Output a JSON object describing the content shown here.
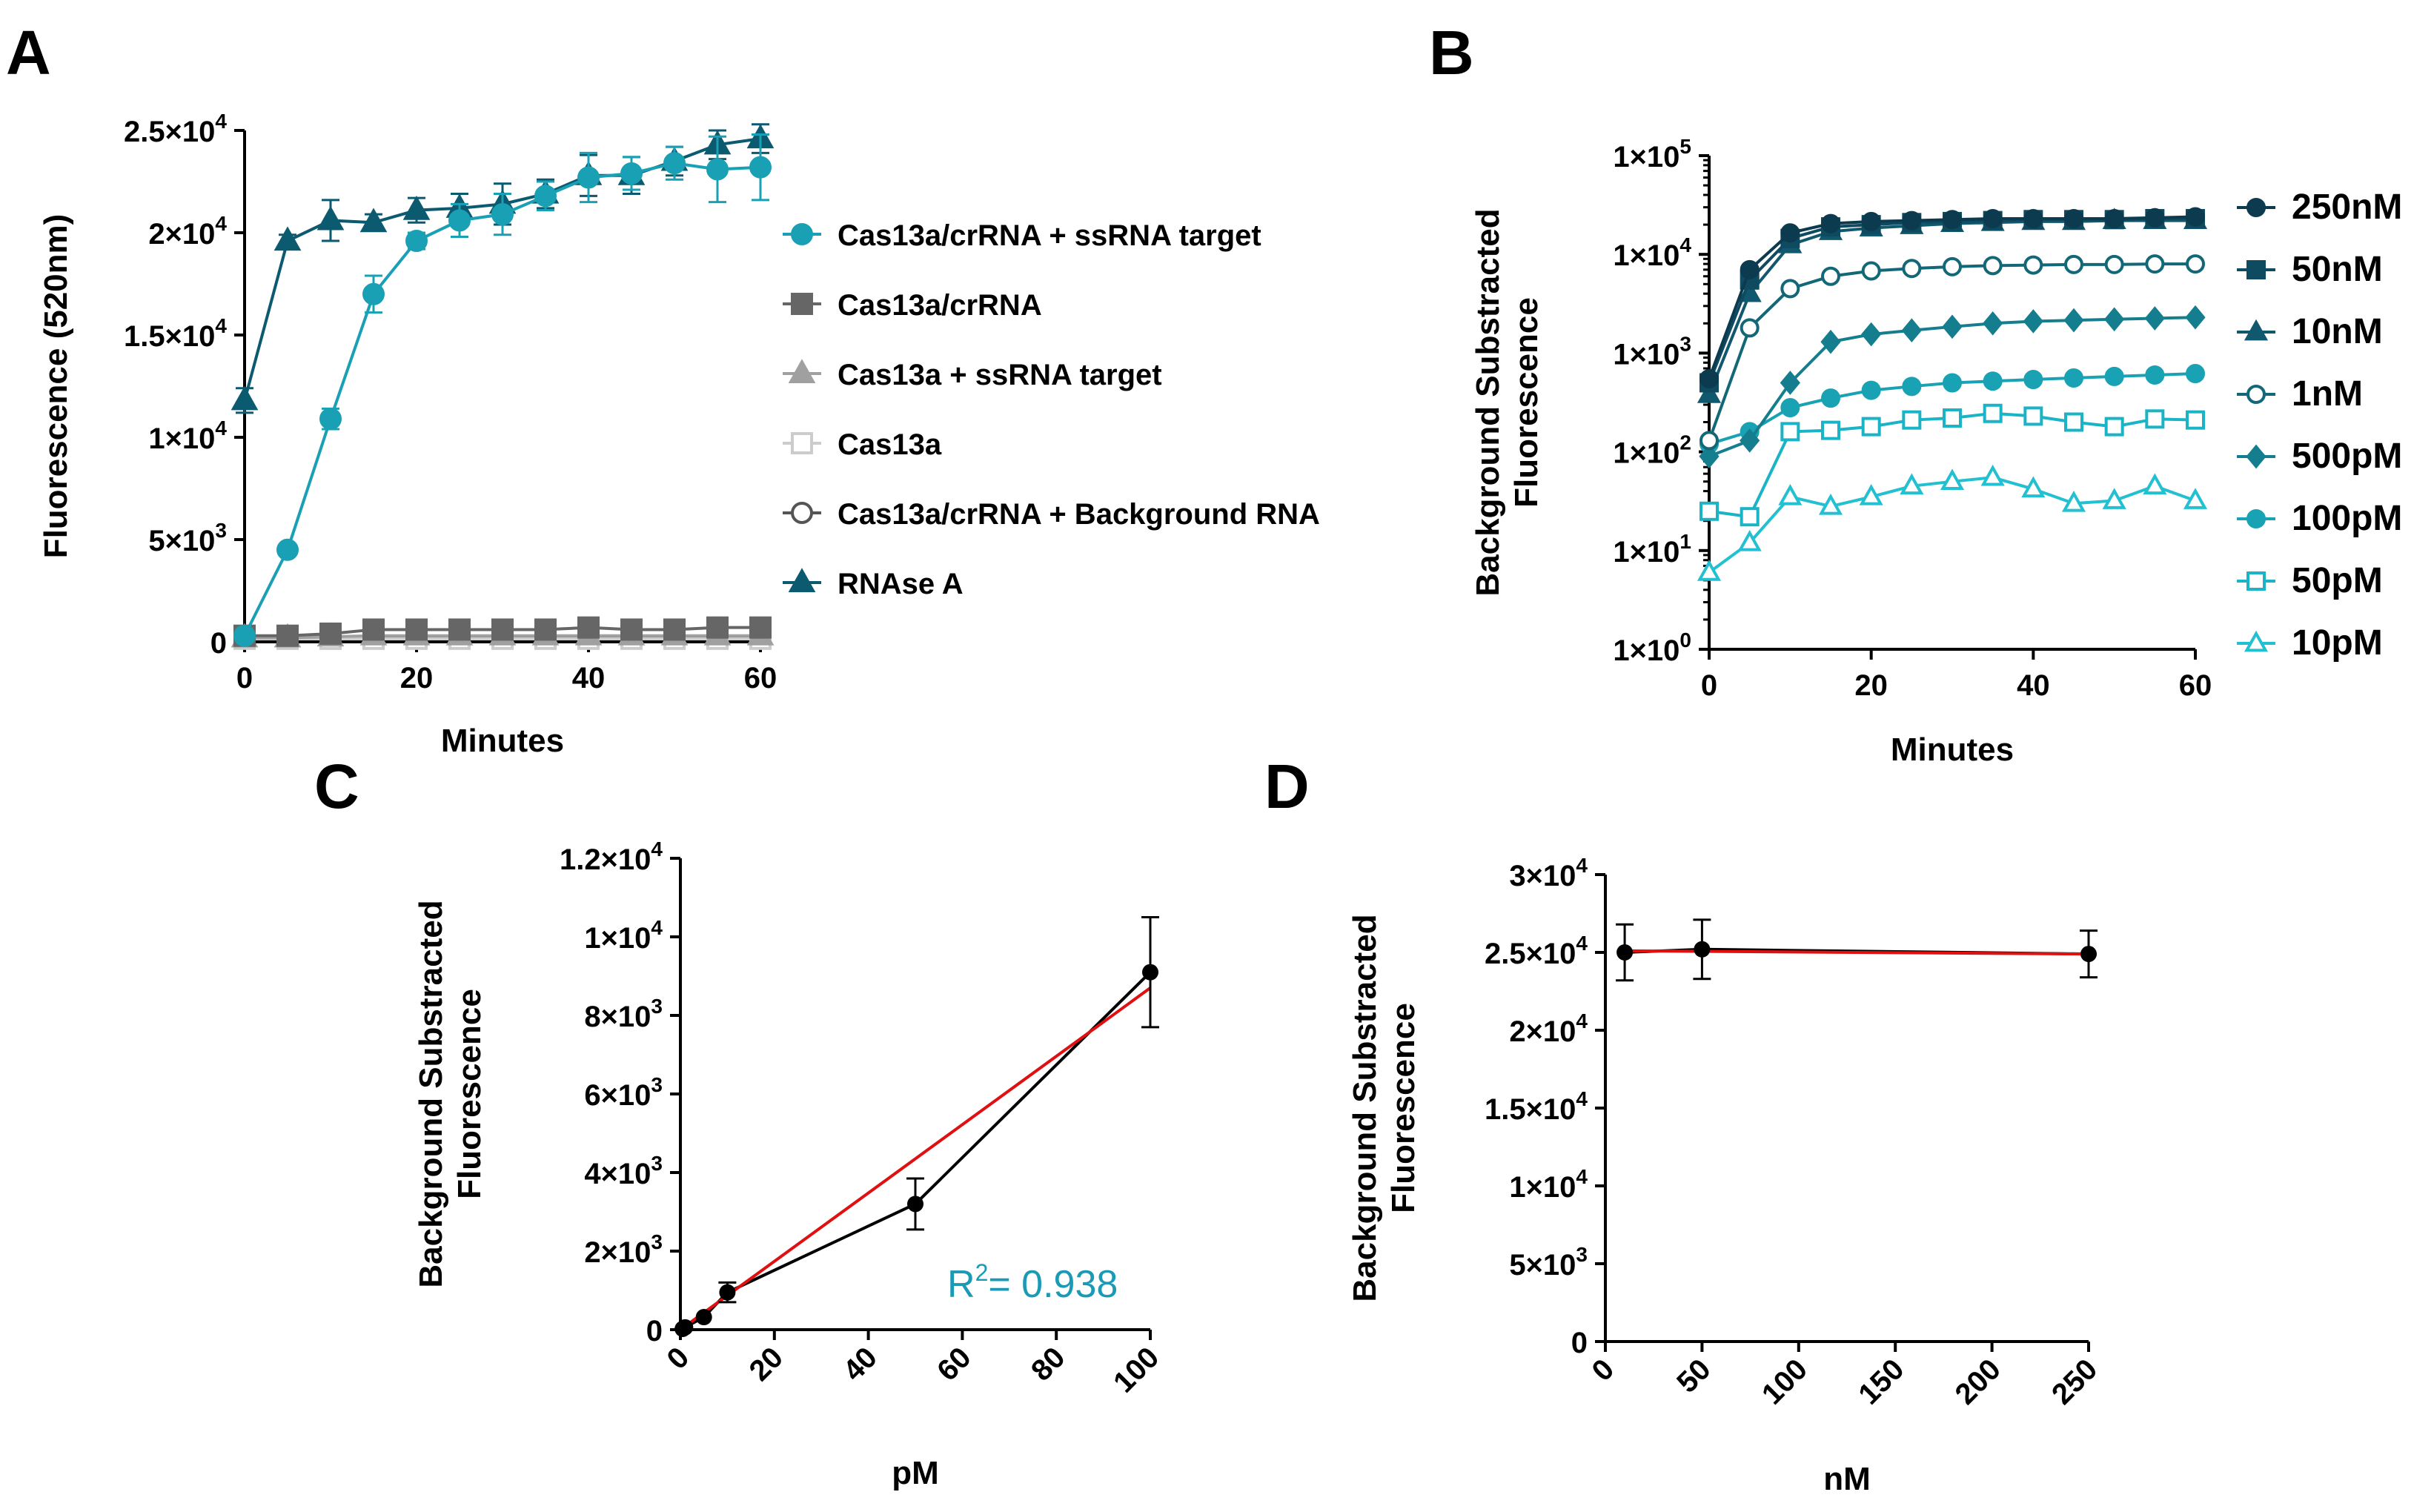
{
  "panels": {
    "A": "A",
    "B": "B",
    "C": "C",
    "D": "D"
  },
  "chart_data": [
    {
      "id": "A",
      "type": "line",
      "title": "",
      "xlabel": "Minutes",
      "ylabel": "Fluorescence (520nm)",
      "xlim": [
        0,
        60
      ],
      "ylim": [
        0,
        25000
      ],
      "xticks": [
        0,
        20,
        40,
        60
      ],
      "yticks": [
        {
          "value": 0,
          "mant": "0",
          "exp": ""
        },
        {
          "value": 5000,
          "mant": "5×10",
          "exp": "3"
        },
        {
          "value": 10000,
          "mant": "1×10",
          "exp": "4"
        },
        {
          "value": 15000,
          "mant": "1.5×10",
          "exp": "4"
        },
        {
          "value": 20000,
          "mant": "2×10",
          "exp": "4"
        },
        {
          "value": 25000,
          "mant": "2.5×10",
          "exp": "4"
        }
      ],
      "legend_position": "right",
      "x": [
        0,
        5,
        10,
        15,
        20,
        25,
        30,
        35,
        40,
        45,
        50,
        55,
        60
      ],
      "series": [
        {
          "name": "Cas13a/crRNA + ssRNA target",
          "color": "#1aa0b4",
          "marker": "circle",
          "fill": true,
          "values": [
            300,
            4500,
            10900,
            17000,
            19600,
            20600,
            20900,
            21800,
            22700,
            22900,
            23400,
            23100,
            23200
          ],
          "errors": [
            150,
            250,
            500,
            900,
            400,
            800,
            1000,
            700,
            1200,
            800,
            800,
            1600,
            1600
          ]
        },
        {
          "name": "Cas13a/crRNA",
          "color": "#666666",
          "marker": "square",
          "fill": true,
          "values": [
            300,
            300,
            400,
            600,
            600,
            600,
            600,
            600,
            700,
            600,
            600,
            700,
            700
          ],
          "errors": [
            100,
            100,
            100,
            100,
            100,
            100,
            100,
            100,
            100,
            100,
            100,
            100,
            100
          ]
        },
        {
          "name": "Cas13a + ssRNA target",
          "color": "#a0a0a0",
          "marker": "triangle",
          "fill": true,
          "values": [
            200,
            200,
            250,
            300,
            300,
            300,
            300,
            300,
            300,
            300,
            300,
            300,
            300
          ],
          "errors": [
            0,
            0,
            0,
            0,
            0,
            0,
            0,
            0,
            0,
            0,
            0,
            0,
            0
          ]
        },
        {
          "name": "Cas13a",
          "color": "#cccccc",
          "marker": "square",
          "fill": false,
          "values": [
            150,
            150,
            150,
            150,
            150,
            150,
            150,
            150,
            150,
            150,
            150,
            150,
            150
          ],
          "errors": [
            0,
            0,
            0,
            0,
            0,
            0,
            0,
            0,
            0,
            0,
            0,
            0,
            0
          ]
        },
        {
          "name": "Cas13a/crRNA + Background RNA",
          "color": "#555555",
          "marker": "circle",
          "fill": false,
          "values": [
            250,
            200,
            250,
            250,
            250,
            250,
            250,
            250,
            250,
            250,
            250,
            250,
            250
          ],
          "errors": [
            0,
            0,
            0,
            0,
            0,
            0,
            0,
            0,
            0,
            0,
            0,
            0,
            0
          ]
        },
        {
          "name": "RNAse A",
          "color": "#0c5a70",
          "marker": "triangle",
          "fill": true,
          "values": [
            11800,
            19600,
            20600,
            20500,
            21100,
            21200,
            21400,
            21900,
            22800,
            22800,
            23500,
            24300,
            24600
          ],
          "errors": [
            600,
            300,
            1000,
            400,
            600,
            700,
            1000,
            700,
            1000,
            900,
            700,
            700,
            700
          ]
        }
      ]
    },
    {
      "id": "B",
      "type": "line",
      "title": "",
      "xlabel": "Minutes",
      "ylabel": "Background Substracted Fluorescence",
      "ylabel_lines": [
        "Background Substracted",
        "Fluorescence"
      ],
      "yscale": "log",
      "xlim": [
        0,
        60
      ],
      "ylim": [
        1,
        100000
      ],
      "xticks": [
        0,
        20,
        40,
        60
      ],
      "yticks": [
        {
          "value": 1,
          "mant": "1×10",
          "exp": "0"
        },
        {
          "value": 10,
          "mant": "1×10",
          "exp": "1"
        },
        {
          "value": 100,
          "mant": "1×10",
          "exp": "2"
        },
        {
          "value": 1000,
          "mant": "1×10",
          "exp": "3"
        },
        {
          "value": 10000,
          "mant": "1×10",
          "exp": "4"
        },
        {
          "value": 100000,
          "mant": "1×10",
          "exp": "5"
        }
      ],
      "legend_position": "right",
      "x": [
        0,
        5,
        10,
        15,
        20,
        25,
        30,
        35,
        40,
        45,
        50,
        55,
        60
      ],
      "series": [
        {
          "name": "250nM",
          "color": "#0c3a4e",
          "marker": "circle",
          "fill": true,
          "values": [
            550,
            7000,
            16500,
            20500,
            21500,
            22000,
            22500,
            23000,
            23000,
            23000,
            23000,
            23500,
            24000
          ]
        },
        {
          "name": "50nM",
          "color": "#0e4a60",
          "marker": "square",
          "fill": true,
          "values": [
            500,
            5500,
            14500,
            19000,
            20000,
            21000,
            21500,
            22000,
            22500,
            22500,
            22500,
            23000,
            23000
          ]
        },
        {
          "name": "10nM",
          "color": "#10586e",
          "marker": "triangle",
          "fill": true,
          "values": [
            380,
            4000,
            12500,
            17000,
            18500,
            19500,
            20500,
            21000,
            21500,
            21500,
            22000,
            22000,
            22000
          ]
        },
        {
          "name": "1nM",
          "color": "#136878",
          "marker": "circle",
          "fill": false,
          "values": [
            130,
            1800,
            4500,
            6000,
            6800,
            7200,
            7500,
            7700,
            7800,
            7900,
            7900,
            8000,
            8000
          ]
        },
        {
          "name": "500pM",
          "color": "#157e8e",
          "marker": "diamond",
          "fill": true,
          "values": [
            90,
            130,
            500,
            1300,
            1550,
            1700,
            1850,
            2000,
            2100,
            2150,
            2200,
            2250,
            2300
          ]
        },
        {
          "name": "100pM",
          "color": "#18a2b4",
          "marker": "circle",
          "fill": true,
          "values": [
            120,
            160,
            280,
            350,
            420,
            460,
            500,
            520,
            540,
            560,
            580,
            600,
            620
          ]
        },
        {
          "name": "50pM",
          "color": "#1ab4c6",
          "marker": "square",
          "fill": false,
          "values": [
            25,
            22,
            160,
            165,
            180,
            210,
            220,
            245,
            230,
            200,
            180,
            215,
            210
          ]
        },
        {
          "name": "10pM",
          "color": "#22c0d0",
          "marker": "triangle",
          "fill": false,
          "values": [
            6,
            12,
            35,
            28,
            35,
            45,
            50,
            55,
            42,
            30,
            32,
            45,
            32
          ]
        }
      ]
    },
    {
      "id": "C",
      "type": "line",
      "title": "",
      "xlabel": "pM",
      "ylabel": "Background Substracted Fluorescence",
      "ylabel_lines": [
        "Background Substracted",
        "Fluorescence"
      ],
      "xlim": [
        0,
        100
      ],
      "ylim": [
        0,
        12000
      ],
      "xticks": [
        0,
        20,
        40,
        60,
        80,
        100
      ],
      "yticks": [
        {
          "value": 0,
          "mant": "0",
          "exp": ""
        },
        {
          "value": 2000,
          "mant": "2×10",
          "exp": "3"
        },
        {
          "value": 4000,
          "mant": "4×10",
          "exp": "3"
        },
        {
          "value": 6000,
          "mant": "6×10",
          "exp": "3"
        },
        {
          "value": 8000,
          "mant": "8×10",
          "exp": "3"
        },
        {
          "value": 10000,
          "mant": "1×10",
          "exp": "4"
        },
        {
          "value": 12000,
          "mant": "1.2×10",
          "exp": "4"
        }
      ],
      "x": [
        0.5,
        1,
        5,
        10,
        50,
        100
      ],
      "values": [
        20,
        60,
        320,
        950,
        3200,
        9100
      ],
      "errors": [
        20,
        30,
        60,
        250,
        650,
        1400
      ],
      "fit": {
        "color": "#e01010",
        "x": [
          0,
          100
        ],
        "y": [
          -300,
          8700
        ]
      },
      "annotation": {
        "prefix": "R",
        "sup": "2",
        "text": "= 0.938",
        "color": "#1a9ab4"
      }
    },
    {
      "id": "D",
      "type": "line",
      "title": "",
      "xlabel": "nM",
      "ylabel": "Background Substracted Fluorescence",
      "ylabel_lines": [
        "Background Substracted",
        "Fluorescence"
      ],
      "xlim": [
        0,
        250
      ],
      "ylim": [
        0,
        30000
      ],
      "xticks": [
        0,
        50,
        100,
        150,
        200,
        250
      ],
      "yticks": [
        {
          "value": 0,
          "mant": "0",
          "exp": ""
        },
        {
          "value": 5000,
          "mant": "5×10",
          "exp": "3"
        },
        {
          "value": 10000,
          "mant": "1×10",
          "exp": "4"
        },
        {
          "value": 15000,
          "mant": "1.5×10",
          "exp": "4"
        },
        {
          "value": 20000,
          "mant": "2×10",
          "exp": "4"
        },
        {
          "value": 25000,
          "mant": "2.5×10",
          "exp": "4"
        },
        {
          "value": 30000,
          "mant": "3×10",
          "exp": "4"
        }
      ],
      "x": [
        10,
        50,
        250
      ],
      "values": [
        25000,
        25200,
        24900
      ],
      "errors": [
        1800,
        1900,
        1500
      ],
      "fit": {
        "color": "#e01010",
        "x": [
          10,
          250
        ],
        "y": [
          25100,
          24900
        ]
      }
    }
  ]
}
